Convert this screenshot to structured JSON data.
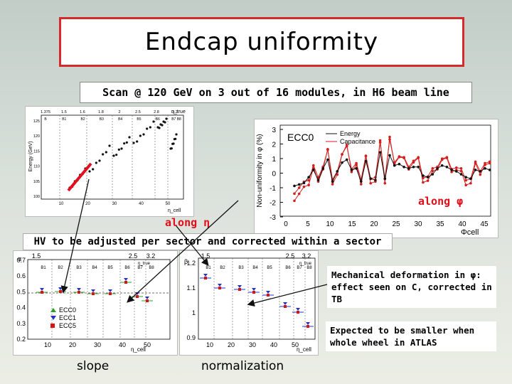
{
  "title": "Endcap uniformity",
  "subtitle": "Scan @ 120 GeV on 3 out of 16 modules, in H6 beam line",
  "left_plot": {
    "ylabel": "Energy (GeV)",
    "top_axis_label": "η_true",
    "top_ticks": [
      "1.375",
      "1.5",
      "1.6",
      "1.8",
      "2",
      "2.5",
      "2.8",
      "3.2"
    ],
    "x_axis_label": "η_cell",
    "x_ticks": [
      "10",
      "20",
      "30",
      "40",
      "50"
    ],
    "y_ticks": [
      "100",
      "105",
      "110",
      "115",
      "120",
      "125"
    ],
    "sector_labels": [
      "B",
      "B1",
      "B2",
      "B3",
      "B4",
      "B5",
      "B6",
      "B7 B8"
    ]
  },
  "right_plot": {
    "ylabel": "Non-uniformity in φ (%)",
    "legend_title": "ECC0",
    "legend": [
      "Energy",
      "Capacitance"
    ],
    "x_axis_label": "Φcell",
    "x_ticks": [
      "0",
      "5",
      "10",
      "15",
      "20",
      "25",
      "30",
      "35",
      "40",
      "45"
    ],
    "y_ticks": [
      "3",
      "2",
      "1",
      "0",
      "-1",
      "-2",
      "-3"
    ],
    "colors": {
      "energy": "#111111",
      "capacitance": "#d41f1f"
    }
  },
  "along_eta": "along η",
  "along_phi": "along φ",
  "hv_text": "HV to be adjusted per sector and corrected within a sector",
  "slope_plot": {
    "ylabel": "α",
    "top_ticks": [
      "1.5",
      "2.5",
      "3.2"
    ],
    "top_axis_label": "η_true",
    "x_ticks": [
      "10",
      "20",
      "30",
      "40",
      "50"
    ],
    "y_ticks": [
      "0.7",
      "0.6",
      "0.5",
      "0.4",
      "0.3",
      "0.2"
    ],
    "x_axis_label": "η_cell",
    "sectors": [
      "B1",
      "B2",
      "B3",
      "B4",
      "B5",
      "B6",
      "B7",
      "B8"
    ],
    "legend": [
      "ECC0",
      "ECC1",
      "ECC5"
    ],
    "colors": {
      "ECC0": "#2aa02a",
      "ECC1": "#2233cc",
      "ECC5": "#dd1111"
    }
  },
  "norm_plot": {
    "ylabel": "β",
    "top_ticks": [
      "1.5",
      "2.5",
      "3.2"
    ],
    "top_axis_label": "η_true",
    "x_ticks": [
      "10",
      "20",
      "30",
      "40",
      "50"
    ],
    "y_ticks": [
      "1.2",
      "1.1",
      "1",
      "0.9"
    ],
    "x_axis_label": "η_cell",
    "sectors": [
      "B1",
      "B2",
      "B3",
      "B4",
      "B5",
      "B6",
      "B7",
      "B8"
    ]
  },
  "note_mechanical": "Mechanical deformation in φ: effect seen on C, corrected in TB",
  "note_expected": "Expected to be smaller when whole wheel in ATLAS",
  "caption_slope": "slope",
  "caption_norm": "normalization"
}
